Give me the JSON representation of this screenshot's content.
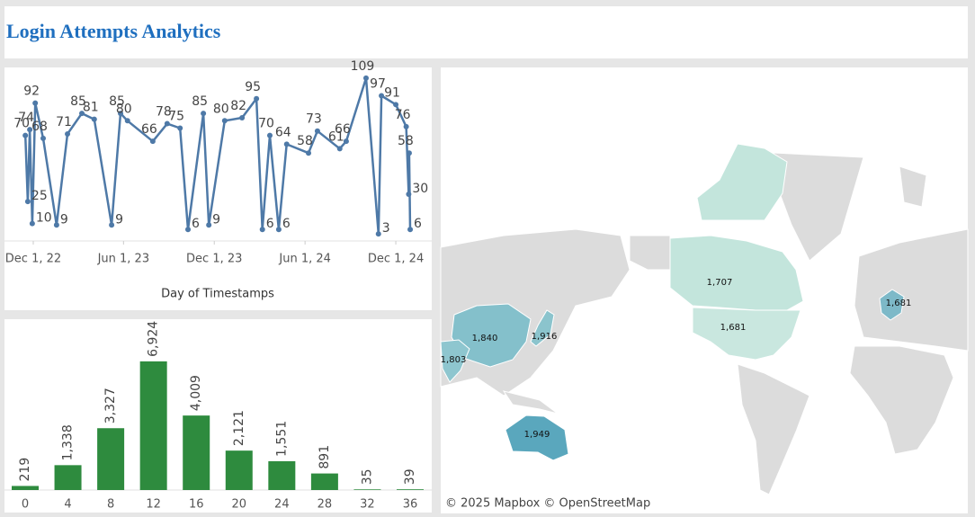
{
  "title": "Login Attempts Analytics",
  "chart_data": [
    {
      "type": "line",
      "x_label": "Day of Timestamps",
      "color": "#4e79a7",
      "x": [
        "2022-11-15",
        "2022-11-20",
        "2022-11-24",
        "2022-11-29",
        "2022-12-05",
        "2022-12-21",
        "2023-01-17",
        "2023-02-08",
        "2023-03-09",
        "2023-04-03",
        "2023-05-08",
        "2023-05-26",
        "2023-06-09",
        "2023-07-30",
        "2023-08-28",
        "2023-09-23",
        "2023-10-09",
        "2023-11-09",
        "2023-11-20",
        "2023-12-22",
        "2024-01-26",
        "2024-02-24",
        "2024-03-07",
        "2024-03-22",
        "2024-04-09",
        "2024-04-25",
        "2024-06-08",
        "2024-06-26",
        "2024-08-10",
        "2024-08-23",
        "2024-10-02",
        "2024-10-27",
        "2024-11-02",
        "2024-12-01",
        "2024-12-22",
        "2024-12-27",
        "2024-12-28",
        "2024-12-30"
      ],
      "values": [
        70,
        25,
        74,
        10,
        92,
        68,
        9,
        71,
        85,
        81,
        9,
        85,
        80,
        66,
        78,
        75,
        6,
        85,
        9,
        80,
        82,
        95,
        6,
        70,
        6,
        64,
        58,
        73,
        61,
        66,
        109,
        3,
        97,
        91,
        76,
        30,
        58,
        6
      ],
      "xlim": [
        "2022-11-12",
        "2025-01-02"
      ],
      "ylim": [
        0,
        112
      ],
      "xticks": [
        {
          "value": "2022-12-01",
          "label": "Dec 1, 22"
        },
        {
          "value": "2023-06-01",
          "label": "Jun 1, 23"
        },
        {
          "value": "2023-12-01",
          "label": "Dec 1, 23"
        },
        {
          "value": "2024-06-01",
          "label": "Jun 1, 24"
        },
        {
          "value": "2024-12-01",
          "label": "Dec 1, 24"
        }
      ]
    },
    {
      "type": "bar",
      "color": "#2e8b3e",
      "categories": [
        "0",
        "4",
        "8",
        "12",
        "16",
        "20",
        "24",
        "28",
        "32",
        "36"
      ],
      "values": [
        219,
        1338,
        3327,
        6924,
        4009,
        2121,
        1551,
        891,
        35,
        39
      ],
      "value_labels": [
        "219",
        "1,338",
        "3,327",
        "6,924",
        "4,009",
        "2,121",
        "1,551",
        "891",
        "35",
        "39"
      ],
      "ylim": [
        0,
        9000
      ]
    },
    {
      "type": "map",
      "attribution": "© 2025 Mapbox © OpenStreetMap",
      "values": [
        1707,
        1681,
        1681,
        1840,
        1916,
        1803,
        1949
      ],
      "value_labels": [
        "1,707",
        "1,681",
        "1,681",
        "1,840",
        "1,916",
        "1,803",
        "1,949"
      ],
      "colors": [
        "#c3e5dc",
        "#c9e7df",
        "#7db9c8",
        "#84c0cb",
        "#8bc4cd",
        "#8ec6cf",
        "#5aa7bd"
      ]
    }
  ]
}
